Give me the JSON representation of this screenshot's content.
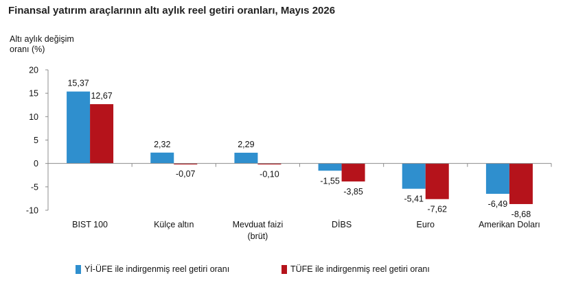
{
  "chart_data": {
    "type": "bar",
    "title": "Finansal yatırım araçlarının altı aylık reel getiri oranları, Mayıs 2026",
    "ylabel_lines": [
      "Altı aylık değişim",
      "oranı (%)"
    ],
    "xlabel": "",
    "ylim": [
      -10,
      20
    ],
    "yticks": [
      20,
      15,
      10,
      5,
      0,
      -5,
      -10
    ],
    "categories": [
      [
        "BIST 100"
      ],
      [
        "Külçe altın"
      ],
      [
        "Mevduat faizi",
        "(brüt)"
      ],
      [
        "DİBS"
      ],
      [
        "Euro"
      ],
      [
        "Amerikan Doları"
      ]
    ],
    "series": [
      {
        "name": "Yİ-ÜFE ile indirgenmiş reel getiri oranı",
        "color": "#2f8fce",
        "values": [
          15.37,
          2.32,
          2.29,
          -1.55,
          -5.41,
          -6.49
        ],
        "labels": [
          "15,37",
          "2,32",
          "2,29",
          "-1,55",
          "-5,41",
          "-6,49"
        ]
      },
      {
        "name": "TÜFE ile indirgenmiş reel getiri oranı",
        "color": "#b5131b",
        "values": [
          12.67,
          -0.07,
          -0.1,
          -3.85,
          -7.62,
          -8.68
        ],
        "labels": [
          "12,67",
          "-0,07",
          "-0,10",
          "-3,85",
          "-7,62",
          "-8,68"
        ]
      }
    ],
    "legend_position": "bottom",
    "grid": false
  }
}
